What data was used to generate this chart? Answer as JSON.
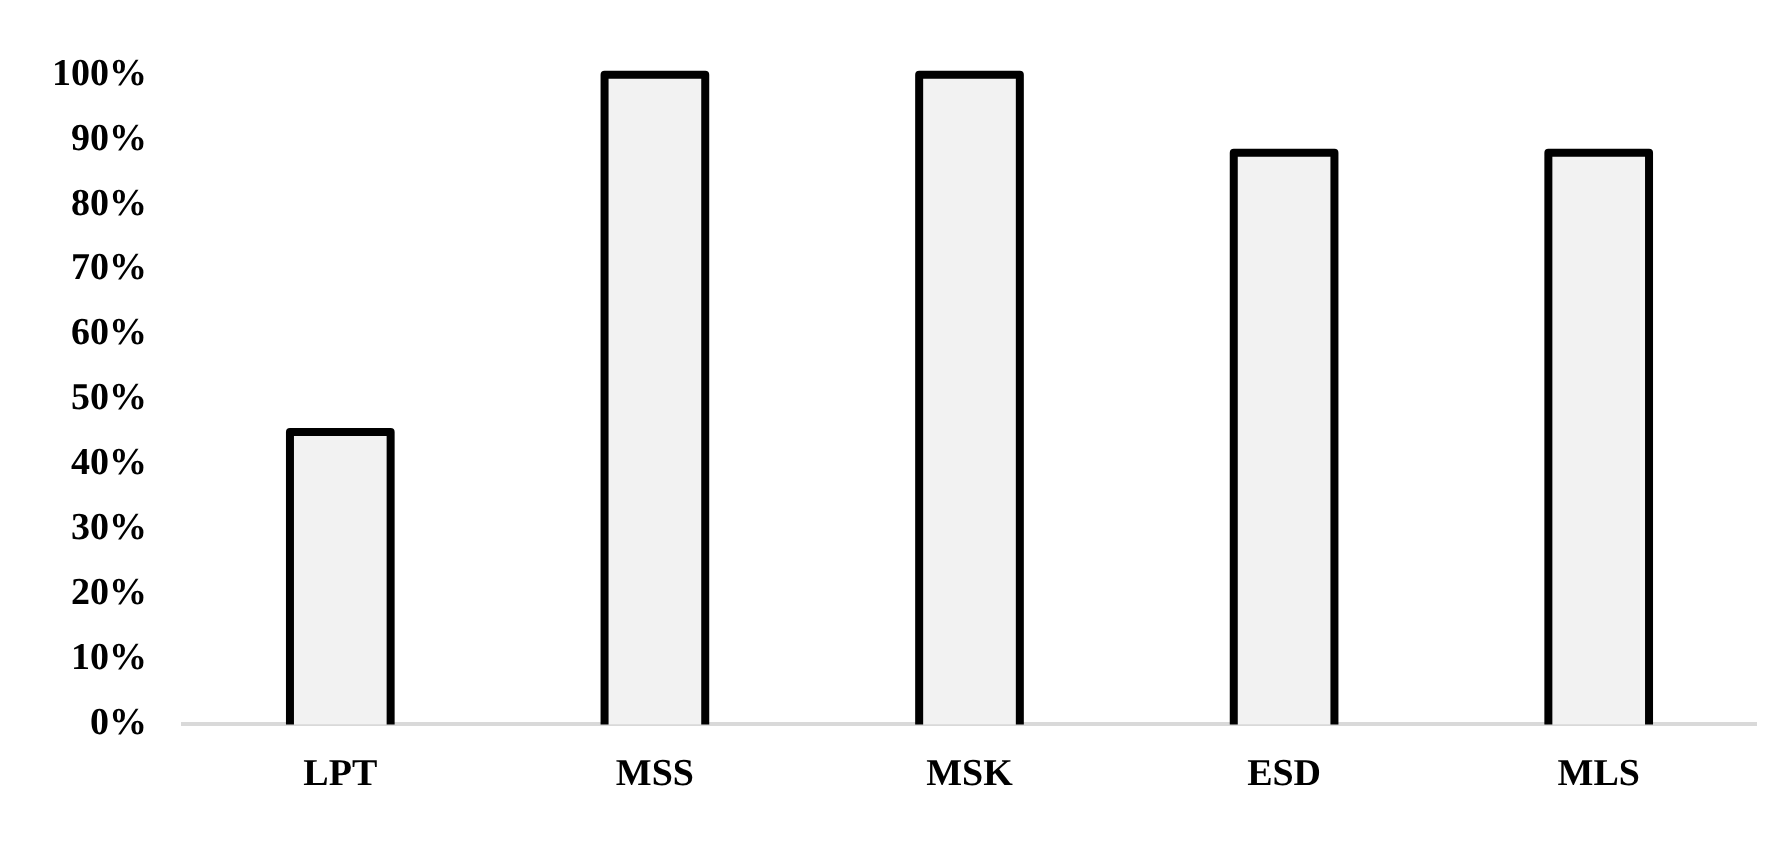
{
  "chart_data": {
    "type": "bar",
    "categories": [
      "LPT",
      "MSS",
      "MSK",
      "ESD",
      "MLS"
    ],
    "values": [
      45,
      100,
      100,
      88,
      88
    ],
    "color": "#f2f2f2",
    "ylim": [
      0,
      100
    ],
    "yticks": [
      {
        "value": 0,
        "label": "0%"
      },
      {
        "value": 10,
        "label": "10%"
      },
      {
        "value": 20,
        "label": "20%"
      },
      {
        "value": 30,
        "label": "30%"
      },
      {
        "value": 40,
        "label": "40%"
      },
      {
        "value": 50,
        "label": "50%"
      },
      {
        "value": 60,
        "label": "60%"
      },
      {
        "value": 70,
        "label": "70%"
      },
      {
        "value": 80,
        "label": "80%"
      },
      {
        "value": 90,
        "label": "90%"
      },
      {
        "value": 100,
        "label": "100%"
      }
    ],
    "grid": false,
    "legend": false
  }
}
